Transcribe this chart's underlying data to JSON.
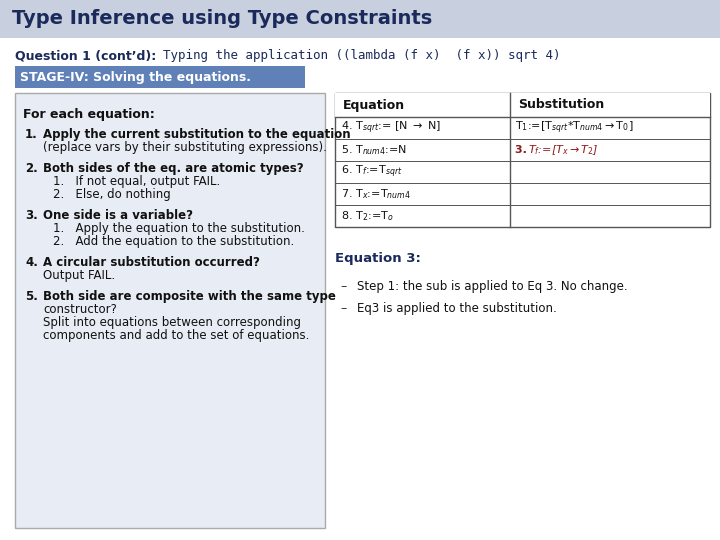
{
  "title": "Type Inference using Type Constraints",
  "title_bg": "#c8d0e0",
  "title_color": "#1a2a5a",
  "question_text": "Question 1 (cont’d):  Typing the application ((lambda (f x)  (f x)) sqrt 4)",
  "stage_text": "STAGE-IV: Solving the equations.",
  "stage_bg": "#6080b8",
  "stage_fg": "#ffffff",
  "left_box_bg": "#e8ecf4",
  "left_box_border": "#888888",
  "body_bg": "#ffffff",
  "for_each_title": "For each equation:",
  "steps": [
    {
      "num": "1.",
      "bold": "Apply the current substitution to the equation",
      "sub": "(replace vars by their substituting expressions)."
    },
    {
      "num": "2.",
      "bold": "Both sides of the eq. are atomic types?",
      "sub_items": [
        "1.   If not equal, output FAIL.",
        "2.   Else, do nothing"
      ]
    },
    {
      "num": "3.",
      "bold": "One side is a variable?",
      "sub_items": [
        "1.   Apply the equation to the substitution.",
        "2.   Add the equation to the substitution."
      ]
    },
    {
      "num": "4.",
      "bold": "A circular substitution occurred?",
      "sub": "Output FAIL."
    },
    {
      "num": "5.",
      "bold": "Both side are composite with the same type constructor?",
      "sub": "Split into equations between corresponding\ncomponents and add to the set of equations."
    }
  ],
  "table_header": [
    "Equation",
    "Substitution"
  ],
  "table_eq": [
    "4. T$_{sqrt}$ := [N → N]",
    "5. T$_{num4}$ :=N",
    "6. T$_f$ :=T$_{sqrt}$",
    "7. T$_x$ :=T$_{num4}$",
    "8. T$_2$ :=T$_o$"
  ],
  "table_sub_line1": "T$_1$:=[T$_{sqrt}$*T$_{num4}$→T$_0$]",
  "table_sub_line2_num": "3.",
  "table_sub_line2_rest": " T$_f$:=[T$_x$→T$_2$]",
  "sub_color": "#8b1a1a",
  "eq3_title": "Equation 3:",
  "eq3_bullet1": "Step 1: the sub is applied to Eq 3. No change.",
  "eq3_bullet2": "Eq3 is applied to the substitution."
}
